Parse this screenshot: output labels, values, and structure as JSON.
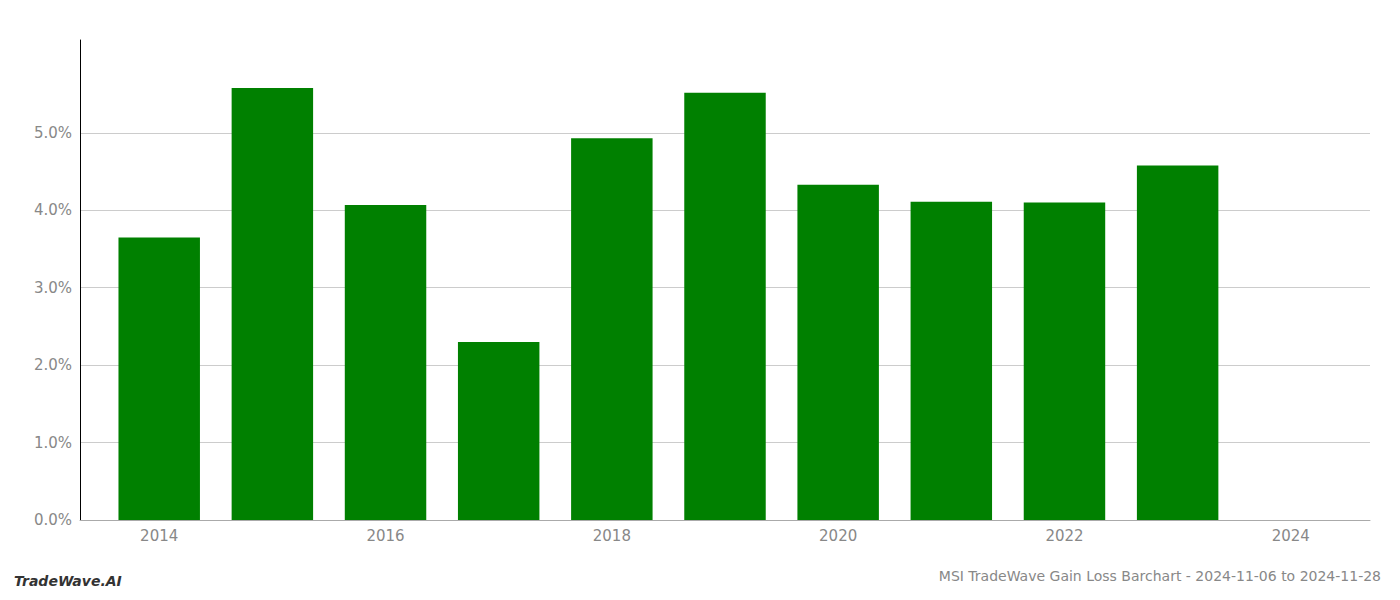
{
  "chart_data": {
    "type": "bar",
    "title": "MSI TradeWave Gain Loss Barchart - 2024-11-06 to 2024-11-28",
    "annotations": [
      "TradeWave.AI"
    ],
    "x": [
      2014,
      2015,
      2016,
      2017,
      2018,
      2019,
      2020,
      2021,
      2022,
      2023
    ],
    "values": [
      0.0365,
      0.0558,
      0.0407,
      0.023,
      0.0493,
      0.0552,
      0.0433,
      0.0411,
      0.041,
      0.0458
    ],
    "color": "#008000",
    "xlim": [
      2013.3,
      2024.7
    ],
    "xticks": [
      2014,
      2016,
      2018,
      2020,
      2022,
      2024
    ],
    "ylim": [
      0.0,
      0.062
    ],
    "yticks": [
      {
        "value": 0.0,
        "label": "0.0%"
      },
      {
        "value": 0.01,
        "label": "1.0%"
      },
      {
        "value": 0.02,
        "label": "2.0%"
      },
      {
        "value": 0.03,
        "label": "3.0%"
      },
      {
        "value": 0.04,
        "label": "4.0%"
      },
      {
        "value": 0.05,
        "label": "5.0%"
      }
    ],
    "grid": true
  }
}
